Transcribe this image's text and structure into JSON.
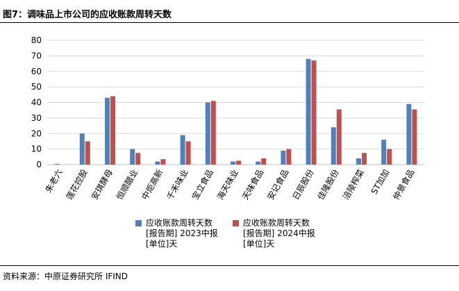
{
  "figure_title": "图7：调味品上市公司的应收账款周转天数",
  "source_text": "资料来源：中原证券研究所 IFIND",
  "colors": {
    "series1": "#4f81bd",
    "series2": "#c0504d",
    "grid": "#d9d9d9",
    "axis": "#bfbfbf"
  },
  "chart_data": {
    "type": "bar",
    "ylim": [
      0,
      80
    ],
    "yticks": [
      0,
      10,
      20,
      30,
      40,
      50,
      60,
      70,
      80
    ],
    "grid": true,
    "legend_position": "bottom",
    "categories": [
      "朱老六",
      "莲花控股",
      "安琪酵母",
      "恒顺醋业",
      "中炬高新",
      "千禾味业",
      "宝立食品",
      "海天味业",
      "天味食品",
      "安记食品",
      "日辰股份",
      "佳隆股份",
      "涪陵榨菜",
      "ST加加",
      "仲景食品"
    ],
    "series": [
      {
        "name": "应收账款周转天数",
        "name_line2": "[报告期]  2023中报",
        "name_line3": "[单位]天",
        "values": [
          0.5,
          20,
          43,
          10,
          2,
          19,
          40,
          2,
          2,
          9,
          68,
          24,
          4,
          16,
          39
        ]
      },
      {
        "name": "应收账款周转天数",
        "name_line2": "[报告期]  2024中报",
        "name_line3": "[单位]天",
        "values": [
          0,
          15,
          44,
          7.5,
          3.5,
          15,
          41,
          2.5,
          4,
          10,
          67,
          35.5,
          7.5,
          10,
          35.5
        ]
      }
    ]
  }
}
